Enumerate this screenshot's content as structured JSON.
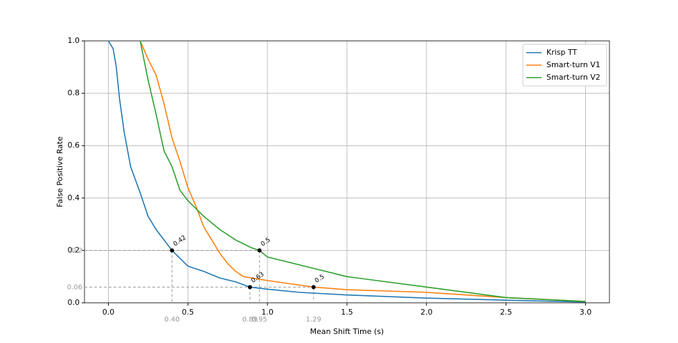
{
  "chart_data": {
    "type": "line",
    "xlabel": "Mean Shift Time (s)",
    "ylabel": "False Positive Rate",
    "xlim": [
      -0.15,
      3.15
    ],
    "ylim": [
      0,
      1
    ],
    "xticks": [
      {
        "value": 0,
        "label": "0.0"
      },
      0.5,
      {
        "value": 1,
        "label": "1.0"
      },
      1.5,
      {
        "value": 2,
        "label": "2.0"
      },
      2.5,
      {
        "value": 3,
        "label": "3.0"
      }
    ],
    "yticks": [
      {
        "value": 0,
        "label": "0.0"
      },
      0.2,
      0.4,
      0.6,
      0.8,
      {
        "value": 1,
        "label": "1.0"
      }
    ],
    "grid": true,
    "legend": "upper right",
    "series": [
      {
        "name": "Krisp TT",
        "color": "#1f77b4",
        "x": [
          0,
          0.03,
          0.05,
          0.07,
          0.1,
          0.14,
          0.2,
          0.25,
          0.3,
          0.35,
          0.4,
          0.45,
          0.5,
          0.6,
          0.7,
          0.8,
          0.89,
          1.0,
          1.2,
          1.5,
          2.0,
          2.5,
          3.0
        ],
        "values": [
          1.0,
          0.97,
          0.9,
          0.78,
          0.65,
          0.52,
          0.42,
          0.33,
          0.28,
          0.24,
          0.2,
          0.17,
          0.14,
          0.12,
          0.095,
          0.08,
          0.06,
          0.052,
          0.04,
          0.03,
          0.018,
          0.01,
          0.003
        ]
      },
      {
        "name": "Smart-turn V1",
        "color": "#ff7f0e",
        "x": [
          0.2,
          0.25,
          0.3,
          0.35,
          0.4,
          0.45,
          0.5,
          0.55,
          0.6,
          0.65,
          0.7,
          0.75,
          0.8,
          0.85,
          1.0,
          1.29,
          1.5,
          2.0,
          2.5,
          3.0
        ],
        "values": [
          1.0,
          0.93,
          0.87,
          0.76,
          0.63,
          0.54,
          0.44,
          0.37,
          0.29,
          0.24,
          0.19,
          0.15,
          0.12,
          0.1,
          0.085,
          0.06,
          0.05,
          0.04,
          0.02,
          0.005
        ]
      },
      {
        "name": "Smart-turn V2",
        "color": "#2ca02c",
        "x": [
          0.2,
          0.25,
          0.3,
          0.35,
          0.4,
          0.45,
          0.5,
          0.6,
          0.7,
          0.8,
          0.9,
          0.95,
          1.0,
          1.1,
          1.3,
          1.5,
          2.0,
          2.5,
          3.0
        ],
        "values": [
          1.0,
          0.85,
          0.72,
          0.58,
          0.52,
          0.43,
          0.39,
          0.33,
          0.28,
          0.24,
          0.21,
          0.2,
          0.175,
          0.16,
          0.13,
          0.1,
          0.06,
          0.02,
          0.005
        ]
      }
    ],
    "annotations": [
      {
        "x": 0.4,
        "y": 0.2,
        "label": "0.42"
      },
      {
        "x": 0.95,
        "y": 0.2,
        "label": "0.5"
      },
      {
        "x": 0.89,
        "y": 0.06,
        "label": "0.63"
      },
      {
        "x": 1.29,
        "y": 0.06,
        "label": "0.5"
      }
    ],
    "guides": {
      "x": [
        {
          "value": 0.4,
          "label": "0.40"
        },
        {
          "value": 0.89,
          "label": "0.89"
        },
        {
          "value": 0.95,
          "label": "0.95"
        },
        {
          "value": 1.29,
          "label": "1.29"
        }
      ],
      "y": [
        {
          "value": 0.2,
          "label": "0.2"
        },
        {
          "value": 0.06,
          "label": "0.06"
        }
      ]
    }
  }
}
